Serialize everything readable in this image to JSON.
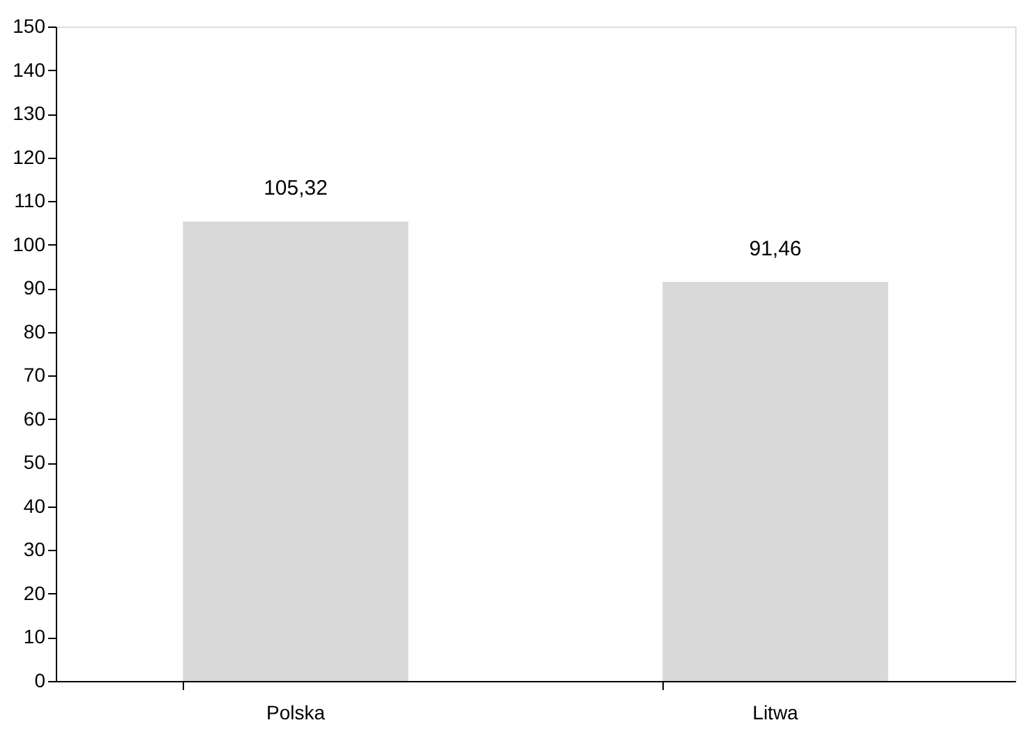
{
  "chart_data": {
    "type": "bar",
    "categories": [
      "Polska",
      "Litwa"
    ],
    "values": [
      105.32,
      91.46
    ],
    "value_labels": [
      "105,32",
      "91,46"
    ],
    "color": "#d9d9d9",
    "ylim": [
      0,
      150
    ],
    "yticks": [
      0,
      10,
      20,
      30,
      40,
      50,
      60,
      70,
      80,
      90,
      100,
      110,
      120,
      130,
      140,
      150
    ],
    "grid": false
  }
}
